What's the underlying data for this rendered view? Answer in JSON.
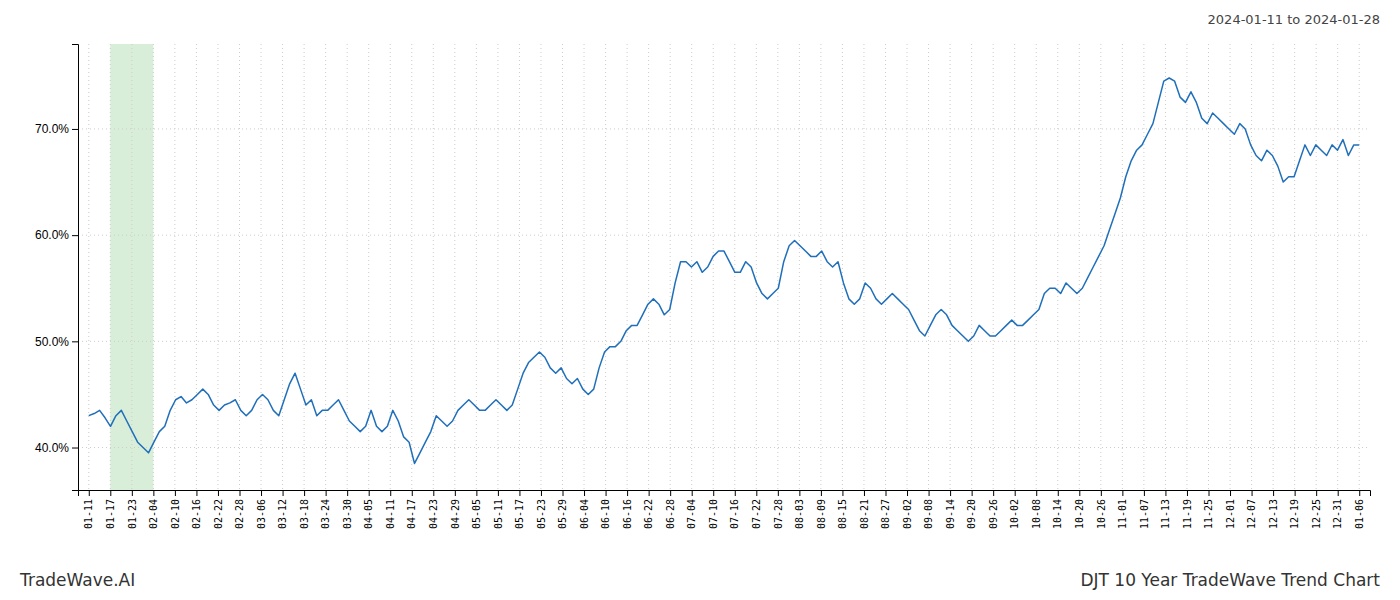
{
  "chart_data": {
    "type": "line",
    "title": "DJT 10 Year TradeWave Trend Chart",
    "subtitle": "2024-01-11 to 2024-01-28",
    "annotations": [
      "TradeWave.AI"
    ],
    "color": "#1f6fba",
    "grid": true,
    "highlight": {
      "start": 1,
      "end": 3,
      "color": "#d8eed8"
    },
    "xlim": [
      -0.5,
      59.5
    ],
    "xticks": [
      {
        "value": 0,
        "label": "01-11"
      },
      {
        "value": 1,
        "label": "01-17"
      },
      {
        "value": 2,
        "label": "01-23"
      },
      {
        "value": 3,
        "label": "02-04"
      },
      {
        "value": 4,
        "label": "02-10"
      },
      {
        "value": 5,
        "label": "02-16"
      },
      {
        "value": 6,
        "label": "02-22"
      },
      {
        "value": 7,
        "label": "02-28"
      },
      {
        "value": 8,
        "label": "03-06"
      },
      {
        "value": 9,
        "label": "03-12"
      },
      {
        "value": 10,
        "label": "03-18"
      },
      {
        "value": 11,
        "label": "03-24"
      },
      {
        "value": 12,
        "label": "03-30"
      },
      {
        "value": 13,
        "label": "04-05"
      },
      {
        "value": 14,
        "label": "04-11"
      },
      {
        "value": 15,
        "label": "04-17"
      },
      {
        "value": 16,
        "label": "04-23"
      },
      {
        "value": 17,
        "label": "04-29"
      },
      {
        "value": 18,
        "label": "05-05"
      },
      {
        "value": 19,
        "label": "05-11"
      },
      {
        "value": 20,
        "label": "05-17"
      },
      {
        "value": 21,
        "label": "05-23"
      },
      {
        "value": 22,
        "label": "05-29"
      },
      {
        "value": 23,
        "label": "06-04"
      },
      {
        "value": 24,
        "label": "06-10"
      },
      {
        "value": 25,
        "label": "06-16"
      },
      {
        "value": 26,
        "label": "06-22"
      },
      {
        "value": 27,
        "label": "06-28"
      },
      {
        "value": 28,
        "label": "07-04"
      },
      {
        "value": 29,
        "label": "07-10"
      },
      {
        "value": 30,
        "label": "07-16"
      },
      {
        "value": 31,
        "label": "07-22"
      },
      {
        "value": 32,
        "label": "07-28"
      },
      {
        "value": 33,
        "label": "08-03"
      },
      {
        "value": 34,
        "label": "08-09"
      },
      {
        "value": 35,
        "label": "08-15"
      },
      {
        "value": 36,
        "label": "08-21"
      },
      {
        "value": 37,
        "label": "08-27"
      },
      {
        "value": 38,
        "label": "09-02"
      },
      {
        "value": 39,
        "label": "09-08"
      },
      {
        "value": 40,
        "label": "09-14"
      },
      {
        "value": 41,
        "label": "09-20"
      },
      {
        "value": 42,
        "label": "09-26"
      },
      {
        "value": 43,
        "label": "10-02"
      },
      {
        "value": 44,
        "label": "10-08"
      },
      {
        "value": 45,
        "label": "10-14"
      },
      {
        "value": 46,
        "label": "10-20"
      },
      {
        "value": 47,
        "label": "10-26"
      },
      {
        "value": 48,
        "label": "11-01"
      },
      {
        "value": 49,
        "label": "11-07"
      },
      {
        "value": 50,
        "label": "11-13"
      },
      {
        "value": 51,
        "label": "11-19"
      },
      {
        "value": 52,
        "label": "11-25"
      },
      {
        "value": 53,
        "label": "12-01"
      },
      {
        "value": 54,
        "label": "12-07"
      },
      {
        "value": 55,
        "label": "12-13"
      },
      {
        "value": 56,
        "label": "12-19"
      },
      {
        "value": 57,
        "label": "12-25"
      },
      {
        "value": 58,
        "label": "12-31"
      },
      {
        "value": 59,
        "label": "01-06"
      }
    ],
    "ylim": [
      36,
      78
    ],
    "yticks": [
      {
        "value": 40,
        "label": "40.0%"
      },
      {
        "value": 50,
        "label": "50.0%"
      },
      {
        "value": 60,
        "label": "60.0%"
      },
      {
        "value": 70,
        "label": "70.0%"
      }
    ],
    "values": [
      43.0,
      43.2,
      43.5,
      42.8,
      42.0,
      43.0,
      43.5,
      42.5,
      41.5,
      40.5,
      40.0,
      39.5,
      40.5,
      41.5,
      42.0,
      43.5,
      44.5,
      44.8,
      44.2,
      44.5,
      45.0,
      45.5,
      45.0,
      44.0,
      43.5,
      44.0,
      44.2,
      44.5,
      43.5,
      43.0,
      43.5,
      44.5,
      45.0,
      44.5,
      43.5,
      43.0,
      44.5,
      46.0,
      47.0,
      45.5,
      44.0,
      44.5,
      43.0,
      43.5,
      43.5,
      44.0,
      44.5,
      43.5,
      42.5,
      42.0,
      41.5,
      42.0,
      43.5,
      42.0,
      41.5,
      42.0,
      43.5,
      42.5,
      41.0,
      40.5,
      38.5,
      39.5,
      40.5,
      41.5,
      43.0,
      42.5,
      42.0,
      42.5,
      43.5,
      44.0,
      44.5,
      44.0,
      43.5,
      43.5,
      44.0,
      44.5,
      44.0,
      43.5,
      44.0,
      45.5,
      47.0,
      48.0,
      48.5,
      49.0,
      48.5,
      47.5,
      47.0,
      47.5,
      46.5,
      46.0,
      46.5,
      45.5,
      45.0,
      45.5,
      47.5,
      49.0,
      49.5,
      49.5,
      50.0,
      51.0,
      51.5,
      51.5,
      52.5,
      53.5,
      54.0,
      53.5,
      52.5,
      53.0,
      55.5,
      57.5,
      57.5,
      57.0,
      57.5,
      56.5,
      57.0,
      58.0,
      58.5,
      58.5,
      57.5,
      56.5,
      56.5,
      57.5,
      57.0,
      55.5,
      54.5,
      54.0,
      54.5,
      55.0,
      57.5,
      59.0,
      59.5,
      59.0,
      58.5,
      58.0,
      58.0,
      58.5,
      57.5,
      57.0,
      57.5,
      55.5,
      54.0,
      53.5,
      54.0,
      55.5,
      55.0,
      54.0,
      53.5,
      54.0,
      54.5,
      54.0,
      53.5,
      53.0,
      52.0,
      51.0,
      50.5,
      51.5,
      52.5,
      53.0,
      52.5,
      51.5,
      51.0,
      50.5,
      50.0,
      50.5,
      51.5,
      51.0,
      50.5,
      50.5,
      51.0,
      51.5,
      52.0,
      51.5,
      51.5,
      52.0,
      52.5,
      53.0,
      54.5,
      55.0,
      55.0,
      54.5,
      55.5,
      55.0,
      54.5,
      55.0,
      56.0,
      57.0,
      58.0,
      59.0,
      60.5,
      62.0,
      63.5,
      65.5,
      67.0,
      68.0,
      68.5,
      69.5,
      70.5,
      72.5,
      74.5,
      74.8,
      74.5,
      73.0,
      72.5,
      73.5,
      72.5,
      71.0,
      70.5,
      71.5,
      71.0,
      70.5,
      70.0,
      69.5,
      70.5,
      70.0,
      68.5,
      67.5,
      67.0,
      68.0,
      67.5,
      66.5,
      65.0,
      65.5,
      65.5,
      67.0,
      68.5,
      67.5,
      68.5,
      68.0,
      67.5,
      68.5,
      68.0,
      69.0,
      67.5,
      68.5,
      68.5
    ]
  }
}
